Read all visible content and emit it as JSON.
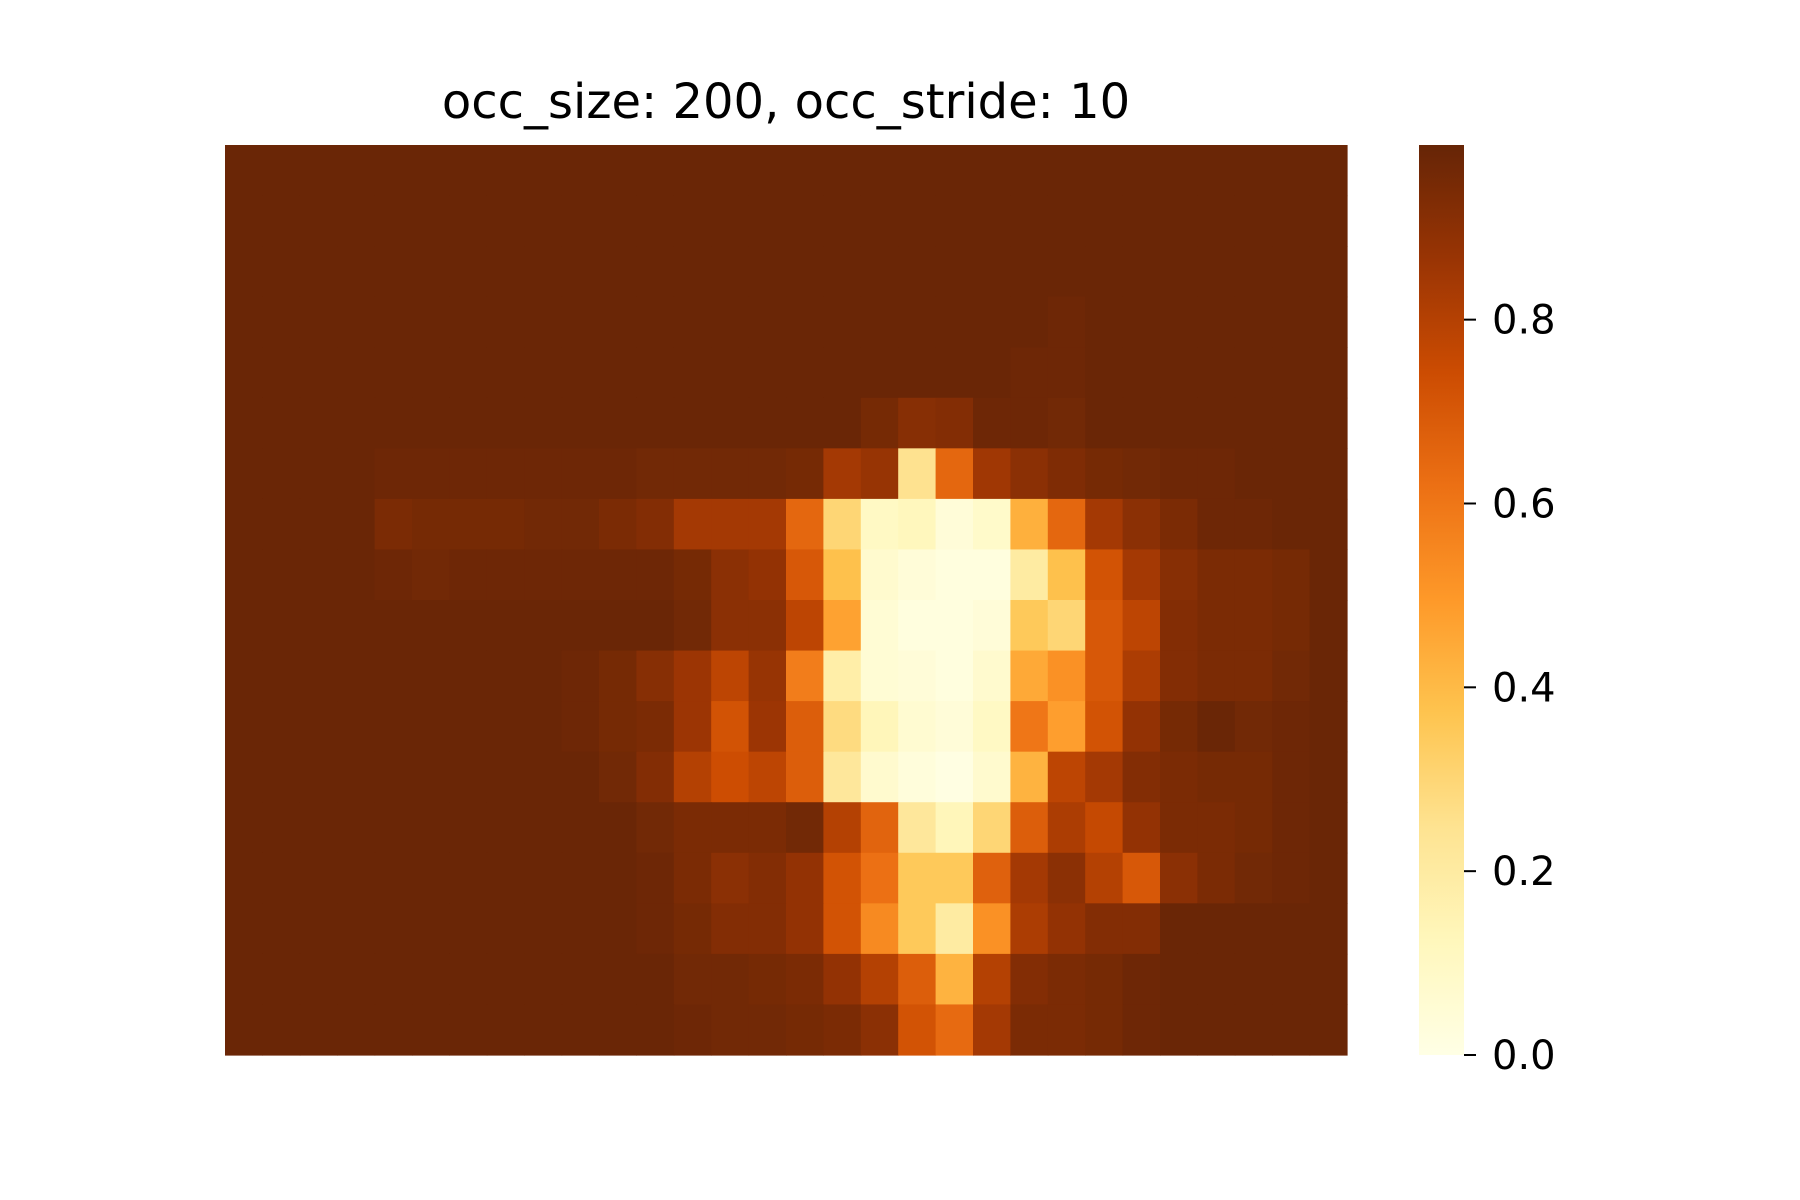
{
  "chart_data": {
    "type": "heatmap",
    "title": "occ_size: 200, occ_stride: 10",
    "xlabel": "",
    "ylabel": "",
    "n_rows": 18,
    "n_cols": 30,
    "colormap": "YlOrBr",
    "colorbar": {
      "range": [
        0.0,
        0.99
      ],
      "ticks": [
        0.0,
        0.2,
        0.4,
        0.6,
        0.8
      ],
      "tick_labels": [
        "0.0",
        "0.2",
        "0.4",
        "0.6",
        "0.8"
      ]
    },
    "values": [
      [
        0.98,
        0.98,
        0.98,
        0.98,
        0.98,
        0.98,
        0.98,
        0.98,
        0.98,
        0.98,
        0.98,
        0.98,
        0.98,
        0.98,
        0.98,
        0.98,
        0.98,
        0.98,
        0.98,
        0.98,
        0.98,
        0.98,
        0.98,
        0.98,
        0.98,
        0.98,
        0.98,
        0.98,
        0.98,
        0.98
      ],
      [
        0.98,
        0.98,
        0.98,
        0.98,
        0.98,
        0.98,
        0.98,
        0.98,
        0.98,
        0.98,
        0.98,
        0.98,
        0.98,
        0.98,
        0.98,
        0.98,
        0.98,
        0.98,
        0.98,
        0.98,
        0.98,
        0.98,
        0.98,
        0.98,
        0.98,
        0.98,
        0.98,
        0.98,
        0.98,
        0.98
      ],
      [
        0.98,
        0.98,
        0.98,
        0.98,
        0.98,
        0.98,
        0.98,
        0.98,
        0.98,
        0.98,
        0.98,
        0.98,
        0.98,
        0.98,
        0.98,
        0.98,
        0.98,
        0.98,
        0.98,
        0.98,
        0.98,
        0.98,
        0.98,
        0.98,
        0.98,
        0.98,
        0.98,
        0.98,
        0.98,
        0.98
      ],
      [
        0.98,
        0.98,
        0.98,
        0.98,
        0.98,
        0.98,
        0.98,
        0.98,
        0.98,
        0.98,
        0.98,
        0.98,
        0.98,
        0.98,
        0.98,
        0.98,
        0.98,
        0.98,
        0.98,
        0.98,
        0.98,
        0.98,
        0.97,
        0.98,
        0.98,
        0.98,
        0.98,
        0.98,
        0.98,
        0.98
      ],
      [
        0.98,
        0.98,
        0.98,
        0.98,
        0.98,
        0.98,
        0.98,
        0.98,
        0.98,
        0.98,
        0.98,
        0.98,
        0.98,
        0.98,
        0.98,
        0.98,
        0.98,
        0.98,
        0.98,
        0.98,
        0.98,
        0.97,
        0.97,
        0.98,
        0.98,
        0.98,
        0.98,
        0.98,
        0.98,
        0.98
      ],
      [
        0.98,
        0.98,
        0.98,
        0.98,
        0.98,
        0.98,
        0.98,
        0.98,
        0.98,
        0.98,
        0.98,
        0.98,
        0.98,
        0.98,
        0.98,
        0.98,
        0.98,
        0.95,
        0.91,
        0.92,
        0.97,
        0.97,
        0.96,
        0.98,
        0.98,
        0.98,
        0.98,
        0.98,
        0.98,
        0.98
      ],
      [
        0.98,
        0.98,
        0.98,
        0.98,
        0.97,
        0.97,
        0.97,
        0.97,
        0.97,
        0.97,
        0.97,
        0.96,
        0.96,
        0.96,
        0.96,
        0.95,
        0.84,
        0.87,
        0.25,
        0.65,
        0.85,
        0.9,
        0.93,
        0.95,
        0.96,
        0.97,
        0.97,
        0.98,
        0.98,
        0.98
      ],
      [
        0.98,
        0.98,
        0.98,
        0.98,
        0.94,
        0.95,
        0.95,
        0.95,
        0.96,
        0.96,
        0.94,
        0.92,
        0.84,
        0.84,
        0.84,
        0.65,
        0.3,
        0.1,
        0.12,
        0.04,
        0.08,
        0.43,
        0.65,
        0.84,
        0.9,
        0.94,
        0.97,
        0.97,
        0.98,
        0.98
      ],
      [
        0.98,
        0.98,
        0.98,
        0.98,
        0.97,
        0.96,
        0.97,
        0.97,
        0.97,
        0.97,
        0.97,
        0.97,
        0.95,
        0.9,
        0.88,
        0.7,
        0.38,
        0.07,
        0.04,
        0.02,
        0.02,
        0.2,
        0.38,
        0.72,
        0.84,
        0.91,
        0.94,
        0.94,
        0.95,
        0.98
      ],
      [
        0.98,
        0.98,
        0.98,
        0.98,
        0.98,
        0.98,
        0.98,
        0.98,
        0.98,
        0.98,
        0.98,
        0.98,
        0.96,
        0.9,
        0.9,
        0.78,
        0.47,
        0.05,
        0.02,
        0.02,
        0.04,
        0.35,
        0.3,
        0.7,
        0.78,
        0.92,
        0.94,
        0.94,
        0.95,
        0.98
      ],
      [
        0.98,
        0.98,
        0.98,
        0.98,
        0.98,
        0.98,
        0.98,
        0.98,
        0.98,
        0.97,
        0.95,
        0.91,
        0.86,
        0.78,
        0.87,
        0.58,
        0.18,
        0.05,
        0.04,
        0.02,
        0.07,
        0.45,
        0.52,
        0.7,
        0.82,
        0.92,
        0.94,
        0.94,
        0.96,
        0.98
      ],
      [
        0.98,
        0.98,
        0.98,
        0.98,
        0.98,
        0.98,
        0.98,
        0.98,
        0.98,
        0.97,
        0.95,
        0.94,
        0.86,
        0.72,
        0.86,
        0.68,
        0.28,
        0.13,
        0.06,
        0.04,
        0.1,
        0.6,
        0.48,
        0.72,
        0.88,
        0.95,
        0.98,
        0.96,
        0.97,
        0.98
      ],
      [
        0.98,
        0.98,
        0.98,
        0.98,
        0.98,
        0.98,
        0.98,
        0.98,
        0.98,
        0.98,
        0.96,
        0.92,
        0.8,
        0.74,
        0.78,
        0.68,
        0.22,
        0.07,
        0.03,
        0.01,
        0.07,
        0.42,
        0.78,
        0.84,
        0.92,
        0.94,
        0.95,
        0.95,
        0.97,
        0.98
      ],
      [
        0.98,
        0.98,
        0.98,
        0.98,
        0.98,
        0.98,
        0.98,
        0.98,
        0.98,
        0.98,
        0.98,
        0.96,
        0.94,
        0.94,
        0.94,
        0.96,
        0.8,
        0.66,
        0.22,
        0.13,
        0.3,
        0.68,
        0.82,
        0.76,
        0.88,
        0.94,
        0.94,
        0.95,
        0.97,
        0.98
      ],
      [
        0.98,
        0.98,
        0.98,
        0.98,
        0.98,
        0.98,
        0.98,
        0.98,
        0.98,
        0.98,
        0.98,
        0.97,
        0.94,
        0.9,
        0.92,
        0.88,
        0.72,
        0.62,
        0.35,
        0.35,
        0.67,
        0.84,
        0.9,
        0.8,
        0.7,
        0.9,
        0.94,
        0.96,
        0.97,
        0.98
      ],
      [
        0.98,
        0.98,
        0.98,
        0.98,
        0.98,
        0.98,
        0.98,
        0.98,
        0.98,
        0.98,
        0.98,
        0.97,
        0.95,
        0.92,
        0.92,
        0.88,
        0.72,
        0.54,
        0.35,
        0.2,
        0.52,
        0.82,
        0.88,
        0.92,
        0.92,
        0.98,
        0.98,
        0.98,
        0.98,
        0.98
      ],
      [
        0.98,
        0.98,
        0.98,
        0.98,
        0.98,
        0.98,
        0.98,
        0.98,
        0.98,
        0.98,
        0.98,
        0.98,
        0.96,
        0.96,
        0.95,
        0.94,
        0.88,
        0.8,
        0.68,
        0.42,
        0.8,
        0.92,
        0.94,
        0.95,
        0.97,
        0.98,
        0.98,
        0.98,
        0.98,
        0.98
      ],
      [
        0.98,
        0.98,
        0.98,
        0.98,
        0.98,
        0.98,
        0.98,
        0.98,
        0.98,
        0.98,
        0.98,
        0.98,
        0.97,
        0.96,
        0.96,
        0.95,
        0.94,
        0.9,
        0.72,
        0.64,
        0.84,
        0.94,
        0.94,
        0.95,
        0.97,
        0.98,
        0.98,
        0.98,
        0.98,
        0.98
      ]
    ]
  }
}
